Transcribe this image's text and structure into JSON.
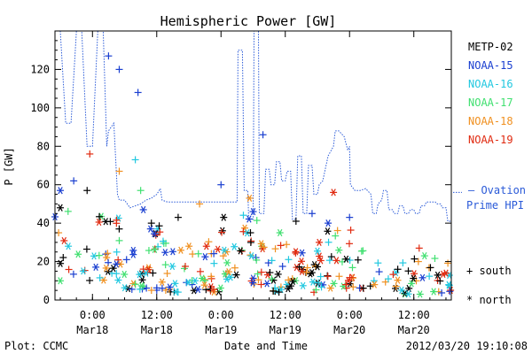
{
  "chart_data": {
    "type": "scatter",
    "title": "Hemispheric Power [GW]",
    "ylabel": "P [GW]",
    "xlabel": "Date and Time",
    "ylim": [
      0,
      140
    ],
    "xlim": [
      "2012-03-17 17:00",
      "2012-03-20 19:00"
    ],
    "yticks": [
      0,
      20,
      40,
      60,
      80,
      100,
      120
    ],
    "xticks": [
      {
        "time": "2012-03-18 00:00",
        "label1": "0:00",
        "label2": "Mar18"
      },
      {
        "time": "2012-03-18 12:00",
        "label1": "12:00",
        "label2": "Mar18"
      },
      {
        "time": "2012-03-19 00:00",
        "label1": "0:00",
        "label2": "Mar19"
      },
      {
        "time": "2012-03-19 12:00",
        "label1": "12:00",
        "label2": "Mar19"
      },
      {
        "time": "2012-03-20 00:00",
        "label1": "0:00",
        "label2": "Mar20"
      },
      {
        "time": "2012-03-20 12:00",
        "label1": "12:00",
        "label2": "Mar20"
      }
    ],
    "grid": false,
    "legend_placement": "right",
    "satellites": [
      {
        "name": "METP-02",
        "color": "#000000"
      },
      {
        "name": "NOAA-15",
        "color": "#1a3fd0"
      },
      {
        "name": "NOAA-16",
        "color": "#22c8e0"
      },
      {
        "name": "NOAA-17",
        "color": "#40e070"
      },
      {
        "name": "NOAA-18",
        "color": "#f09020"
      },
      {
        "name": "NOAA-19",
        "color": "#e02a10"
      }
    ],
    "ovation": {
      "name": "Ovation Prime HPI",
      "legend_lines": [
        "— Ovation",
        "Prime HPI"
      ],
      "color": "#2a5ad8",
      "points": [
        [
          "2012-03-17 17:00",
          140
        ],
        [
          "2012-03-17 18:00",
          140
        ],
        [
          "2012-03-17 19:00",
          92
        ],
        [
          "2012-03-17 20:00",
          92
        ],
        [
          "2012-03-17 21:00",
          140
        ],
        [
          "2012-03-17 22:00",
          140
        ],
        [
          "2012-03-17 23:00",
          80
        ],
        [
          "2012-03-18 00:00",
          80
        ],
        [
          "2012-03-18 01:00",
          140
        ],
        [
          "2012-03-18 02:00",
          140
        ],
        [
          "2012-03-18 02:40",
          80
        ],
        [
          "2012-03-18 03:00",
          88
        ],
        [
          "2012-03-18 04:00",
          92
        ],
        [
          "2012-03-18 04:40",
          55
        ],
        [
          "2012-03-18 05:00",
          52
        ],
        [
          "2012-03-18 06:00",
          52
        ],
        [
          "2012-03-18 07:00",
          48
        ],
        [
          "2012-03-18 08:00",
          49
        ],
        [
          "2012-03-18 09:00",
          50
        ],
        [
          "2012-03-18 10:00",
          52
        ],
        [
          "2012-03-18 11:00",
          53
        ],
        [
          "2012-03-18 12:00",
          55
        ],
        [
          "2012-03-18 12:40",
          58
        ],
        [
          "2012-03-18 13:00",
          52
        ],
        [
          "2012-03-18 14:00",
          51
        ],
        [
          "2012-03-18 15:00",
          51
        ],
        [
          "2012-03-18 16:00",
          51
        ],
        [
          "2012-03-18 17:00",
          51
        ],
        [
          "2012-03-18 18:00",
          51
        ],
        [
          "2012-03-18 19:00",
          51
        ],
        [
          "2012-03-18 20:00",
          51
        ],
        [
          "2012-03-18 21:00",
          51
        ],
        [
          "2012-03-18 22:00",
          51
        ],
        [
          "2012-03-18 23:00",
          51
        ],
        [
          "2012-03-19 00:00",
          51
        ],
        [
          "2012-03-19 01:00",
          51
        ],
        [
          "2012-03-19 02:00",
          51
        ],
        [
          "2012-03-19 03:00",
          51
        ],
        [
          "2012-03-19 03:10",
          130
        ],
        [
          "2012-03-19 04:00",
          130
        ],
        [
          "2012-03-19 04:20",
          57
        ],
        [
          "2012-03-19 05:00",
          57
        ],
        [
          "2012-03-19 05:10",
          42
        ],
        [
          "2012-03-19 06:00",
          42
        ],
        [
          "2012-03-19 06:10",
          140
        ],
        [
          "2012-03-19 07:00",
          140
        ],
        [
          "2012-03-19 07:10",
          45
        ],
        [
          "2012-03-19 08:00",
          45
        ],
        [
          "2012-03-19 08:20",
          68
        ],
        [
          "2012-03-19 09:00",
          68
        ],
        [
          "2012-03-19 09:20",
          60
        ],
        [
          "2012-03-19 10:00",
          60
        ],
        [
          "2012-03-19 10:20",
          72
        ],
        [
          "2012-03-19 11:00",
          72
        ],
        [
          "2012-03-19 11:20",
          62
        ],
        [
          "2012-03-19 12:00",
          62
        ],
        [
          "2012-03-19 12:20",
          67
        ],
        [
          "2012-03-19 13:00",
          67
        ],
        [
          "2012-03-19 13:20",
          42
        ],
        [
          "2012-03-19 14:00",
          42
        ],
        [
          "2012-03-19 14:20",
          75
        ],
        [
          "2012-03-19 15:00",
          75
        ],
        [
          "2012-03-19 15:20",
          45
        ],
        [
          "2012-03-19 16:00",
          45
        ],
        [
          "2012-03-19 16:20",
          70
        ],
        [
          "2012-03-19 17:00",
          70
        ],
        [
          "2012-03-19 17:20",
          55
        ],
        [
          "2012-03-19 18:00",
          55
        ],
        [
          "2012-03-19 18:20",
          60
        ],
        [
          "2012-03-19 19:00",
          62
        ],
        [
          "2012-03-19 20:00",
          75
        ],
        [
          "2012-03-19 21:00",
          80
        ],
        [
          "2012-03-19 21:20",
          88
        ],
        [
          "2012-03-19 22:00",
          88
        ],
        [
          "2012-03-19 23:00",
          85
        ],
        [
          "2012-03-19 23:40",
          78
        ],
        [
          "2012-03-20 00:00",
          80
        ],
        [
          "2012-03-20 00:10",
          60
        ],
        [
          "2012-03-20 01:00",
          57
        ],
        [
          "2012-03-20 02:00",
          57
        ],
        [
          "2012-03-20 03:00",
          58
        ],
        [
          "2012-03-20 04:00",
          55
        ],
        [
          "2012-03-20 04:20",
          45
        ],
        [
          "2012-03-20 05:00",
          45
        ],
        [
          "2012-03-20 05:20",
          50
        ],
        [
          "2012-03-20 06:00",
          52
        ],
        [
          "2012-03-20 06:20",
          57
        ],
        [
          "2012-03-20 07:00",
          57
        ],
        [
          "2012-03-20 07:20",
          47
        ],
        [
          "2012-03-20 08:00",
          47
        ],
        [
          "2012-03-20 08:20",
          45
        ],
        [
          "2012-03-20 09:00",
          45
        ],
        [
          "2012-03-20 09:20",
          49
        ],
        [
          "2012-03-20 10:00",
          49
        ],
        [
          "2012-03-20 10:20",
          45
        ],
        [
          "2012-03-20 11:00",
          45
        ],
        [
          "2012-03-20 11:20",
          47
        ],
        [
          "2012-03-20 12:00",
          47
        ],
        [
          "2012-03-20 12:20",
          45
        ],
        [
          "2012-03-20 13:00",
          45
        ],
        [
          "2012-03-20 13:20",
          49
        ],
        [
          "2012-03-20 14:00",
          49
        ],
        [
          "2012-03-20 14:20",
          51
        ],
        [
          "2012-03-20 16:00",
          51
        ],
        [
          "2012-03-20 16:20",
          50
        ],
        [
          "2012-03-20 17:00",
          50
        ],
        [
          "2012-03-20 17:20",
          48
        ],
        [
          "2012-03-20 18:00",
          48
        ],
        [
          "2012-03-20 18:20",
          41
        ],
        [
          "2012-03-20 19:00",
          41
        ]
      ]
    },
    "markers": {
      "south_label": "south",
      "north_label": "north"
    },
    "observations": [
      {
        "sat": "NOAA-15",
        "time": "2012-03-17 18:00",
        "p": 57,
        "hemi": "north"
      },
      {
        "sat": "NOAA-15",
        "time": "2012-03-17 20:30",
        "p": 62,
        "hemi": "south"
      },
      {
        "sat": "NOAA-15",
        "time": "2012-03-18 03:00",
        "p": 127,
        "hemi": "south"
      },
      {
        "sat": "NOAA-15",
        "time": "2012-03-18 05:00",
        "p": 120,
        "hemi": "south"
      },
      {
        "sat": "NOAA-15",
        "time": "2012-03-18 08:30",
        "p": 108,
        "hemi": "south"
      },
      {
        "sat": "NOAA-15",
        "time": "2012-03-18 09:30",
        "p": 47,
        "hemi": "north"
      },
      {
        "sat": "NOAA-15",
        "time": "2012-03-19 07:50",
        "p": 86,
        "hemi": "south"
      },
      {
        "sat": "NOAA-15",
        "time": "2012-03-19 00:00",
        "p": 60,
        "hemi": "south"
      },
      {
        "sat": "NOAA-15",
        "time": "2012-03-19 06:00",
        "p": 46,
        "hemi": "north"
      },
      {
        "sat": "NOAA-15",
        "time": "2012-03-19 17:00",
        "p": 45,
        "hemi": "south"
      },
      {
        "sat": "NOAA-15",
        "time": "2012-03-19 20:00",
        "p": 40,
        "hemi": "north"
      },
      {
        "sat": "NOAA-15",
        "time": "2012-03-20 00:00",
        "p": 43,
        "hemi": "south"
      },
      {
        "sat": "NOAA-16",
        "time": "2012-03-18 08:00",
        "p": 73,
        "hemi": "south"
      },
      {
        "sat": "NOAA-16",
        "time": "2012-03-17 19:30",
        "p": 28,
        "hemi": "north"
      },
      {
        "sat": "NOAA-16",
        "time": "2012-03-18 10:00",
        "p": 14,
        "hemi": "north"
      },
      {
        "sat": "NOAA-17",
        "time": "2012-03-18 09:00",
        "p": 57,
        "hemi": "south"
      },
      {
        "sat": "NOAA-17",
        "time": "2012-03-19 11:00",
        "p": 35,
        "hemi": "north"
      },
      {
        "sat": "NOAA-17",
        "time": "2012-03-20 14:00",
        "p": 23,
        "hemi": "north"
      },
      {
        "sat": "NOAA-18",
        "time": "2012-03-18 05:00",
        "p": 67,
        "hemi": "south"
      },
      {
        "sat": "NOAA-18",
        "time": "2012-03-19 05:20",
        "p": 53,
        "hemi": "north"
      },
      {
        "sat": "NOAA-18",
        "time": "2012-03-18 20:00",
        "p": 50,
        "hemi": "south"
      },
      {
        "sat": "NOAA-19",
        "time": "2012-03-17 23:30",
        "p": 76,
        "hemi": "south"
      },
      {
        "sat": "NOAA-19",
        "time": "2012-03-19 21:00",
        "p": 56,
        "hemi": "north"
      },
      {
        "sat": "NOAA-19",
        "time": "2012-03-20 18:00",
        "p": 14,
        "hemi": "north"
      },
      {
        "sat": "NOAA-19",
        "time": "2012-03-20 13:00",
        "p": 27,
        "hemi": "south"
      },
      {
        "sat": "METP-02",
        "time": "2012-03-17 23:00",
        "p": 57,
        "hemi": "south"
      },
      {
        "sat": "METP-02",
        "time": "2012-03-17 18:00",
        "p": 48,
        "hemi": "north"
      },
      {
        "sat": "METP-02",
        "time": "2012-03-18 16:00",
        "p": 43,
        "hemi": "south"
      },
      {
        "sat": "METP-02",
        "time": "2012-03-18 11:00",
        "p": 40,
        "hemi": "south"
      },
      {
        "sat": "METP-02",
        "time": "2012-03-19 00:30",
        "p": 43,
        "hemi": "north"
      },
      {
        "sat": "METP-02",
        "time": "2012-03-19 05:30",
        "p": 35,
        "hemi": "south"
      },
      {
        "sat": "METP-02",
        "time": "2012-03-19 14:00",
        "p": 41,
        "hemi": "south"
      },
      {
        "sat": "METP-02",
        "time": "2012-03-20 09:00",
        "p": 16,
        "hemi": "south"
      }
    ],
    "cloud": {
      "description_free": true,
      "bands": [
        {
          "t0": "2012-03-17 17:00",
          "t1": "2012-03-18 06:00",
          "pmin": 10,
          "pmax": 48
        },
        {
          "t0": "2012-03-18 06:00",
          "t1": "2012-03-18 14:00",
          "pmin": 5,
          "pmax": 40
        },
        {
          "t0": "2012-03-18 14:00",
          "t1": "2012-03-19 00:00",
          "pmin": 4,
          "pmax": 32
        },
        {
          "t0": "2012-03-19 00:00",
          "t1": "2012-03-19 09:00",
          "pmin": 8,
          "pmax": 45
        },
        {
          "t0": "2012-03-19 09:00",
          "t1": "2012-03-19 18:00",
          "pmin": 4,
          "pmax": 30
        },
        {
          "t0": "2012-03-19 18:00",
          "t1": "2012-03-20 03:00",
          "pmin": 6,
          "pmax": 38
        },
        {
          "t0": "2012-03-20 03:00",
          "t1": "2012-03-20 19:00",
          "pmin": 3,
          "pmax": 22
        }
      ],
      "per_band": 44
    }
  },
  "footer": {
    "plot_credit": "Plot: CCMC",
    "timestamp": "2012/03/20 19:10:08"
  }
}
